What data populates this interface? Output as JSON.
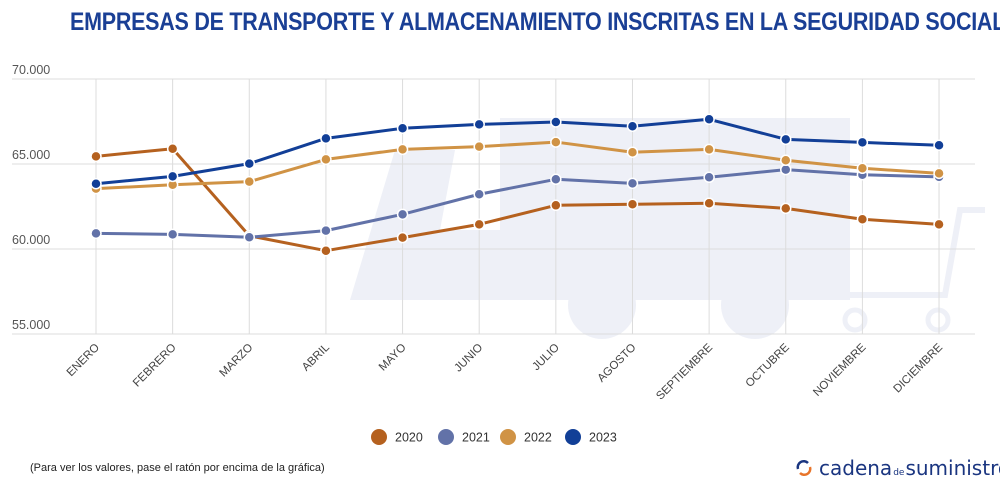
{
  "title": "EMPRESAS DE TRANSPORTE Y ALMACENAMIENTO INSCRITAS EN LA SEGURIDAD SOCIAL",
  "footnote": "(Para ver los valores, pase el ratón por encima de la gráfica)",
  "logo": {
    "part1": "cadena",
    "part2": "de",
    "part3": "suministro"
  },
  "chart_data": {
    "type": "line",
    "title": "EMPRESAS DE TRANSPORTE Y ALMACENAMIENTO INSCRITAS EN LA SEGURIDAD SOCIAL",
    "categories": [
      "ENERO",
      "FEBRERO",
      "MARZO",
      "ABRIL",
      "MAYO",
      "JUNIO",
      "JULIO",
      "AGOSTO",
      "SEPTIEMBRE",
      "OCTUBRE",
      "NOVIEMBRE",
      "DICIEMBRE"
    ],
    "ylim": [
      55000,
      70000
    ],
    "yticks": [
      55000,
      60000,
      65000,
      70000
    ],
    "ytick_labels": [
      "55.000",
      "60.000",
      "65.000",
      "70.000"
    ],
    "grid": true,
    "legend": "bottom",
    "series": [
      {
        "name": "2020",
        "color": "#b5611f",
        "values": [
          65450,
          65900,
          60780,
          59900,
          60670,
          61450,
          62570,
          62630,
          62690,
          62390,
          61750,
          61450
        ]
      },
      {
        "name": "2021",
        "color": "#6272a8",
        "values": [
          60920,
          60860,
          60690,
          61080,
          62040,
          63220,
          64100,
          63860,
          64220,
          64670,
          64370,
          64240
        ]
      },
      {
        "name": "2022",
        "color": "#d09345",
        "values": [
          63550,
          63780,
          63960,
          65270,
          65860,
          66020,
          66290,
          65690,
          65860,
          65220,
          64750,
          64450
        ]
      },
      {
        "name": "2023",
        "color": "#123f97",
        "values": [
          63840,
          64270,
          65020,
          66510,
          67100,
          67330,
          67470,
          67220,
          67630,
          66450,
          66270,
          66100
        ]
      }
    ]
  }
}
